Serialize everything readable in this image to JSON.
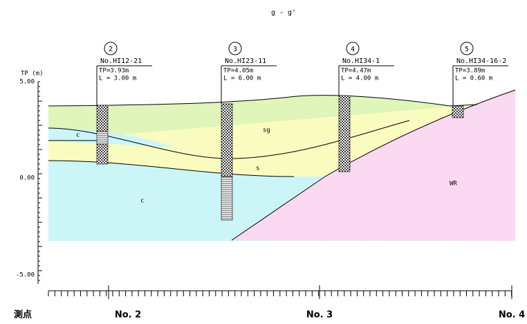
{
  "title": "g - g'",
  "axis": {
    "label": "TP (m)",
    "ticks": [
      "5.00",
      "0.00",
      "-5.00"
    ]
  },
  "boreholes": [
    {
      "number": "2",
      "name": "No.HI12-21",
      "tp": "TP=3.93m",
      "length": "L = 3.00 m"
    },
    {
      "number": "3",
      "name": "No.HI23-11",
      "tp": "TP=4.05m",
      "length": "L = 6.00 m"
    },
    {
      "number": "4",
      "name": "No.HI34-1",
      "tp": "TP=4.47m",
      "length": "L = 4.00 m"
    },
    {
      "number": "5",
      "name": "No.HI34-16-2",
      "tp": "TP=3.89m",
      "length": "L = 0.60 m"
    }
  ],
  "layers": [
    "c",
    "sg",
    "s",
    "c",
    "WR"
  ],
  "stations": {
    "label": "測点",
    "names": [
      "No. 2",
      "No. 3",
      "No. 4"
    ]
  }
}
